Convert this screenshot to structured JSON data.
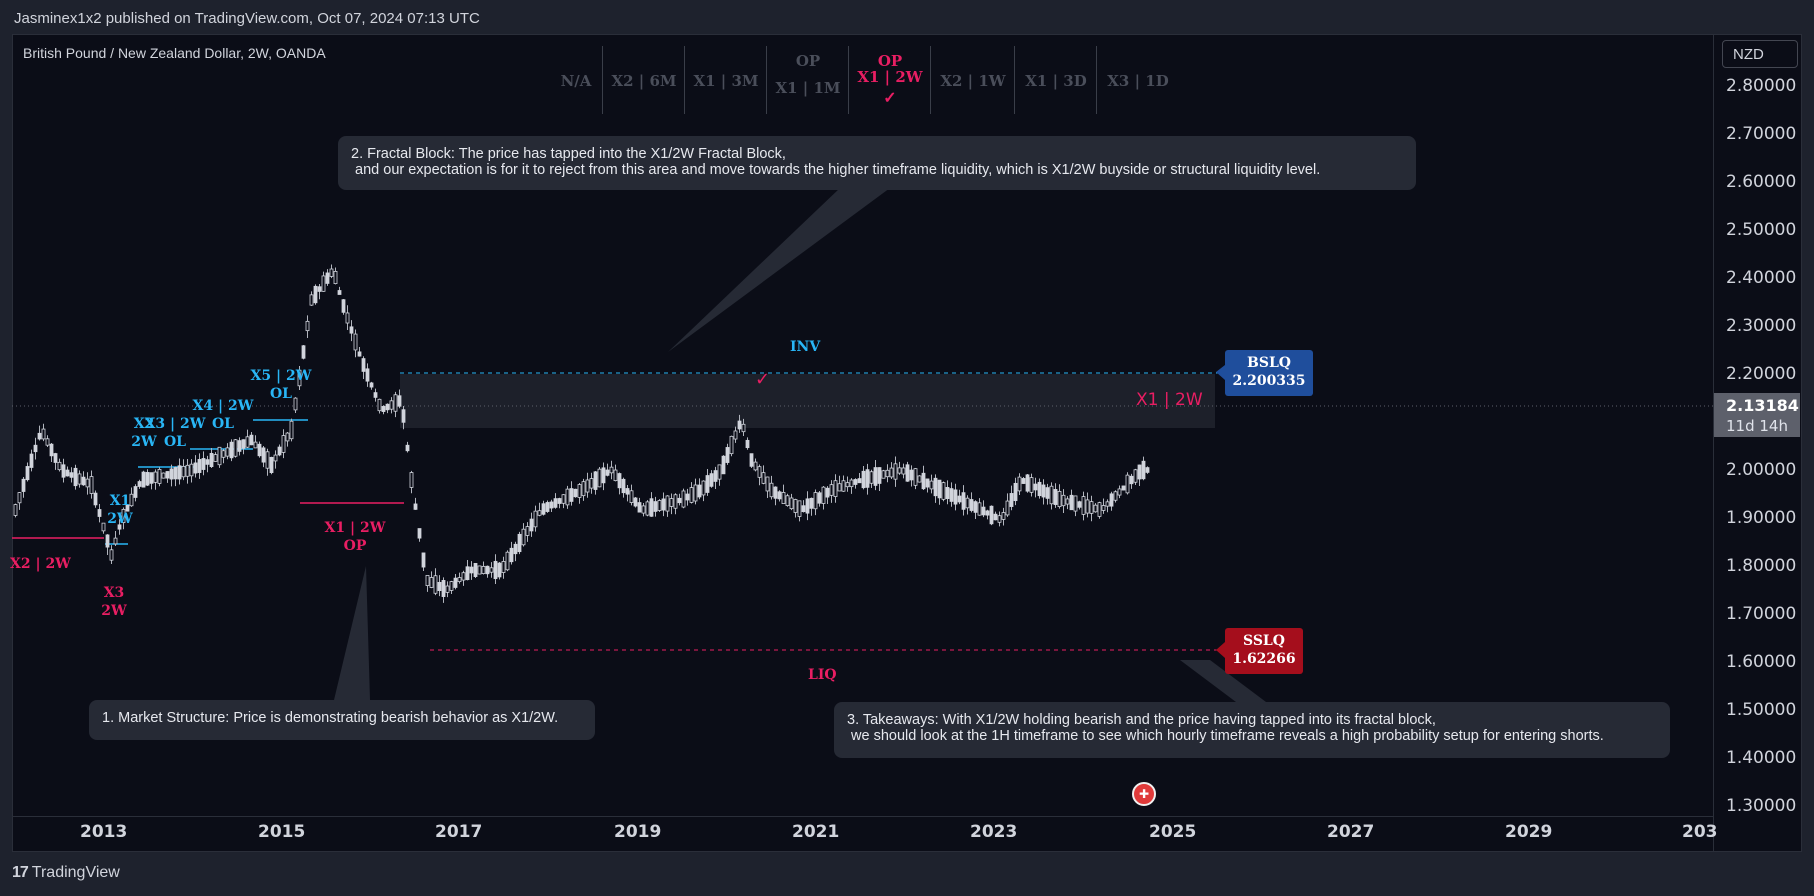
{
  "publish_bar": {
    "text": "Jasminex1x2 published on TradingView.com, Oct 07, 2024 07:13 UTC"
  },
  "symbol": {
    "title": "British Pound / New Zealand Dollar, 2W, OANDA"
  },
  "timeframe_header": {
    "cells": [
      {
        "label": "N/A"
      },
      {
        "label": "X2 | 6M"
      },
      {
        "label": "X1 | 3M"
      },
      {
        "op": "OP",
        "label": "X1 | 1M"
      },
      {
        "op": "OP",
        "label": "X1 | 2W",
        "active": true,
        "check": "✓"
      },
      {
        "label": "X2 | 1W"
      },
      {
        "label": "X1 | 3D"
      },
      {
        "label": "X3 | 1D"
      }
    ]
  },
  "price_axis": {
    "currency": "NZD",
    "ticks": [
      "2.80000",
      "2.70000",
      "2.60000",
      "2.50000",
      "2.40000",
      "2.30000",
      "2.20000",
      "2.00000",
      "1.90000",
      "1.80000",
      "1.70000",
      "1.60000",
      "1.50000",
      "1.40000",
      "1.30000"
    ],
    "current_price": "2.13184",
    "countdown": "11d 14h"
  },
  "time_axis": {
    "years": [
      "2013",
      "2015",
      "2017",
      "2019",
      "2021",
      "2023",
      "2025",
      "2027",
      "2029",
      "203"
    ]
  },
  "notes": {
    "fractal": "2. Fractal Block: The price has tapped into the X1/2W Fractal Block,\n and our expectation is for it to reject from this area and move towards the higher timeframe liquidity, which is X1/2W buyside or structural liquidity level.",
    "structure": "1. Market Structure: Price is demonstrating bearish behavior as X1/2W.",
    "takeaways": "3. Takeaways: With X1/2W holding bearish and the price having tapped into its fractal block,\n we should look at the 1H timeframe to see which hourly timeframe reveals a high probability setup for entering shorts."
  },
  "levels": {
    "bslq_label": "BSLQ",
    "bslq_price": "2.200335",
    "sslq_label": "SSLQ",
    "sslq_price": "1.62266",
    "inv": "INV",
    "liq": "LIQ",
    "x1_2w_right": "X1 | 2W",
    "x1_2w_op_a": "X1 | 2W",
    "x1_2w_op_b": "OP",
    "x2_2w": "X2 | 2W",
    "x3_a": "X3",
    "x3_b": "2W",
    "x1_left_a": "X1",
    "x1_left_b": "2W",
    "x2_left_a": "X2",
    "x2_left_b": "2W",
    "x3_ol_a": "X3 | 2W",
    "x3_ol_b": "OL",
    "x4_a": "X4 | 2W",
    "x4_b": "OL",
    "x5_a": "X5 | 2W",
    "x5_b": "OL"
  },
  "footer": {
    "brand": "TradingView"
  },
  "colors": {
    "background": "#0b0d17",
    "bearish": "#e91e63",
    "bullish": "#29b6f6",
    "bslq": "#1f4e9c",
    "sslq": "#a50e1c"
  }
}
